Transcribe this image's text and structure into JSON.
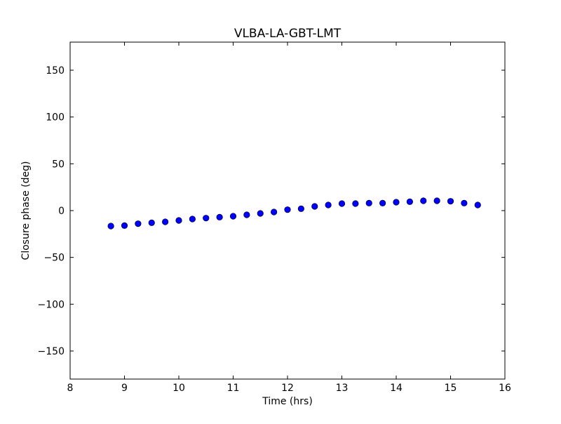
{
  "chart_data": {
    "type": "scatter",
    "title": "VLBA-LA-GBT-LMT",
    "xlabel": "Time (hrs)",
    "ylabel": "Closure phase (deg)",
    "xlim": [
      8,
      16
    ],
    "ylim": [
      -180,
      180
    ],
    "xticks": [
      8,
      9,
      10,
      11,
      12,
      13,
      14,
      15,
      16
    ],
    "yticks": [
      -150,
      -100,
      -50,
      0,
      50,
      100,
      150
    ],
    "ytick_labels": [
      "−150",
      "−100",
      "−50",
      "0",
      "50",
      "100",
      "150"
    ],
    "grid": false,
    "marker_color": "#0000ff",
    "x": [
      8.75,
      9.0,
      9.25,
      9.5,
      9.75,
      10.0,
      10.25,
      10.5,
      10.75,
      11.0,
      11.25,
      11.5,
      11.75,
      12.0,
      12.25,
      12.5,
      12.75,
      13.0,
      13.25,
      13.5,
      13.75,
      14.0,
      14.25,
      14.5,
      14.75,
      15.0,
      15.25,
      15.5
    ],
    "y": [
      -16.5,
      -16,
      -14,
      -13,
      -12,
      -10.5,
      -9,
      -8,
      -7,
      -6,
      -4.5,
      -3,
      -1.5,
      1,
      2,
      4.5,
      6,
      7.5,
      7.5,
      8,
      8,
      9,
      9.5,
      10.5,
      10.5,
      10,
      8,
      6
    ]
  }
}
